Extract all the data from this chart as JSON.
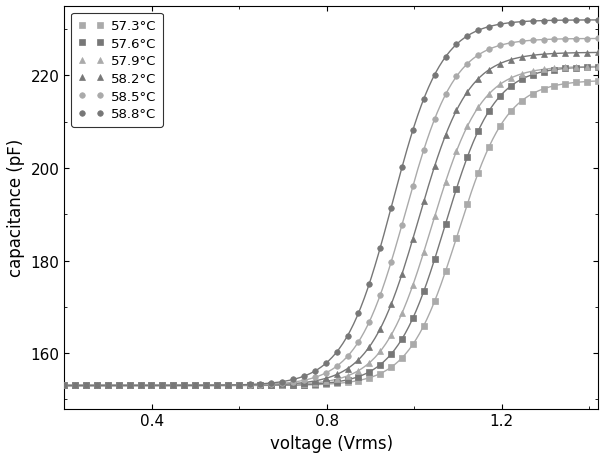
{
  "title": "",
  "xlabel": "voltage (Vrms)",
  "ylabel": "capacitance (pF)",
  "xlim": [
    0.2,
    1.42
  ],
  "ylim": [
    148,
    235
  ],
  "xticks": [
    0.4,
    0.8,
    1.2
  ],
  "yticks": [
    160,
    180,
    200,
    220
  ],
  "series": [
    {
      "label": "57.3°C",
      "color": "#aaaaaa",
      "marker": "s",
      "Vth": 1.1,
      "C_low": 153.0,
      "C_high": 219.0,
      "steepness": 18.0
    },
    {
      "label": "57.6°C",
      "color": "#777777",
      "marker": "s",
      "Vth": 1.07,
      "C_low": 153.0,
      "C_high": 222.0,
      "steepness": 18.0
    },
    {
      "label": "57.9°C",
      "color": "#aaaaaa",
      "marker": "^",
      "Vth": 1.04,
      "C_low": 153.0,
      "C_high": 222.0,
      "steepness": 18.0
    },
    {
      "label": "58.2°C",
      "color": "#777777",
      "marker": "^",
      "Vth": 1.01,
      "C_low": 153.0,
      "C_high": 225.0,
      "steepness": 18.0
    },
    {
      "label": "58.5°C",
      "color": "#aaaaaa",
      "marker": "o",
      "Vth": 0.98,
      "C_low": 153.0,
      "C_high": 228.0,
      "steepness": 18.0
    },
    {
      "label": "58.8°C",
      "color": "#777777",
      "marker": "o",
      "Vth": 0.95,
      "C_low": 153.0,
      "C_high": 232.0,
      "steepness": 18.0
    }
  ],
  "background_color": "#ffffff",
  "legend_loc": "upper left",
  "marker_size": 4,
  "linewidth": 1.0,
  "n_line_points": 300,
  "n_markers": 50
}
